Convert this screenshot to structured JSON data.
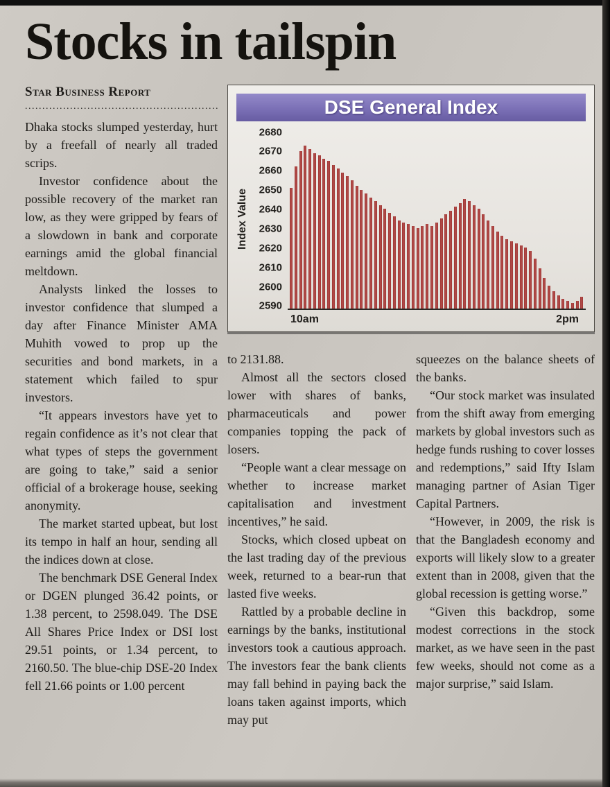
{
  "page": {
    "headline": "Stocks in tailspin",
    "byline": "Star Business Report",
    "byline_divider": "............................................................"
  },
  "article": {
    "col1": [
      "Dhaka stocks slumped yesterday, hurt by a freefall of nearly all traded scrips.",
      "Investor confidence about the possible recovery of the market ran low, as they were gripped by fears of a slowdown in bank and corporate earnings amid the global financial meltdown.",
      "Analysts linked the losses to investor confidence that slumped a day after Finance Minister AMA Muhith vowed to prop up the securities and bond markets, in a statement which failed to spur investors.",
      "“It appears investors have yet to regain confidence as it’s not clear that what types of steps the government are going to take,” said a senior official of a brokerage house, seeking anonymity.",
      "The market started upbeat, but lost its tempo in half an hour, sending all the indices down at close.",
      "The benchmark DSE General Index or DGEN plunged 36.42 points, or 1.38 percent, to 2598.049. The DSE All Shares Price Index or DSI lost 29.51 points, or 1.34 percent, to 2160.50. The blue-chip DSE-20 Index fell 21.66 points or 1.00 percent"
    ],
    "col2": [
      "to 2131.88.",
      "Almost all the sectors closed lower with shares of banks, pharmaceuticals and power companies topping the pack of losers.",
      "“People want a clear message on whether to increase market capitalisation and investment incentives,” he said.",
      "Stocks, which closed upbeat on the last trading day of the previous week, returned to a bear-run that lasted five weeks.",
      "Rattled by a probable decline in earnings by the banks, institutional investors took a cautious approach. The investors fear the bank clients may fall behind in paying back the loans taken against imports, which may put"
    ],
    "col3": [
      "squeezes on the balance sheets of the banks.",
      "“Our stock market was insulated from the shift away from emerging markets by global investors such as hedge funds rushing to cover losses and redemptions,” said Ifty Islam managing partner of Asian Tiger Capital Partners.",
      "“However, in 2009, the risk is that the Bangladesh economy and exports will likely slow to a greater extent than in 2008, given that the global recession is getting worse.”",
      "“Given this backdrop, some modest corrections in the stock market, as we have seen in the past few weeks, should not come as a major surprise,” said Islam."
    ]
  },
  "chart_data": {
    "type": "bar",
    "title": "DSE General Index",
    "ylabel": "Index Value",
    "xlabel": "",
    "x_ticks": [
      "10am",
      "2pm"
    ],
    "y_ticks": [
      2680,
      2670,
      2660,
      2650,
      2640,
      2630,
      2620,
      2610,
      2600,
      2590
    ],
    "ylim": [
      2588,
      2682
    ],
    "bar_color": "#9d3332",
    "title_bar_color": "#7b70b6",
    "values": [
      2651,
      2662,
      2670,
      2673,
      2671,
      2669,
      2668,
      2666,
      2665,
      2663,
      2661,
      2659,
      2657,
      2655,
      2652,
      2650,
      2648,
      2646,
      2644,
      2642,
      2640,
      2638,
      2636,
      2634,
      2633,
      2632,
      2631,
      2630,
      2631,
      2632,
      2631,
      2633,
      2635,
      2637,
      2639,
      2641,
      2643,
      2645,
      2644,
      2642,
      2640,
      2637,
      2634,
      2631,
      2628,
      2626,
      2624,
      2623,
      2622,
      2621,
      2620,
      2618,
      2614,
      2609,
      2604,
      2600,
      2597,
      2595,
      2593,
      2592,
      2591,
      2592,
      2594
    ]
  }
}
